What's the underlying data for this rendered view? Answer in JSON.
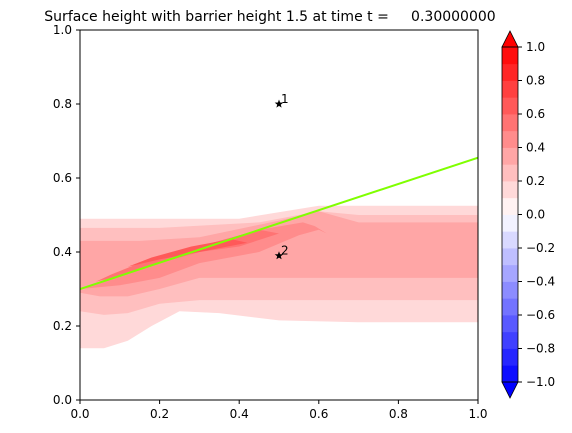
{
  "chart_data": {
    "type": "contourf",
    "title": "Surface height with barrier height 1.5 at time t =     0.30000000",
    "xlim": [
      0,
      1
    ],
    "ylim": [
      0,
      1
    ],
    "x_ticks": [
      "0.0",
      "0.2",
      "0.4",
      "0.6",
      "0.8",
      "1.0"
    ],
    "y_ticks": [
      "0.0",
      "0.2",
      "0.4",
      "0.6",
      "0.8",
      "1.0"
    ],
    "grid": false,
    "colorbar": {
      "range": [
        -1.0,
        1.0
      ],
      "levels": [
        -1.0,
        -0.9,
        -0.8,
        -0.7,
        -0.6,
        -0.5,
        -0.4,
        -0.3,
        -0.2,
        -0.1,
        0.0,
        0.1,
        0.2,
        0.3,
        0.4,
        0.5,
        0.6,
        0.7,
        0.8,
        0.9,
        1.0
      ],
      "tick_labels": [
        "1.0",
        "0.8",
        "0.6",
        "0.4",
        "0.2",
        "0.0",
        "−0.2",
        "−0.4",
        "−0.6",
        "−0.8",
        "−1.0"
      ],
      "extend": "both",
      "colormap": "bwr",
      "colors": {
        "low": "#0000ff",
        "mid": "#ffffff",
        "high": "#ff0000"
      }
    },
    "barrier_line": {
      "color": "#7fff00",
      "points": [
        [
          0.0,
          0.3
        ],
        [
          1.0,
          0.655
        ]
      ]
    },
    "markers": [
      {
        "label": "1",
        "x": 0.5,
        "y": 0.8
      },
      {
        "label": "2",
        "x": 0.5,
        "y": 0.39
      }
    ],
    "surface_bands": [
      {
        "level": 0.1,
        "polygon": [
          [
            0.0,
            0.14
          ],
          [
            0.06,
            0.14
          ],
          [
            0.12,
            0.16
          ],
          [
            0.18,
            0.2
          ],
          [
            0.25,
            0.24
          ],
          [
            0.35,
            0.235
          ],
          [
            0.5,
            0.215
          ],
          [
            0.7,
            0.21
          ],
          [
            1.0,
            0.21
          ],
          [
            1.0,
            0.525
          ],
          [
            0.8,
            0.525
          ],
          [
            0.6,
            0.525
          ],
          [
            0.4,
            0.49
          ],
          [
            0.2,
            0.49
          ],
          [
            0.0,
            0.49
          ]
        ]
      },
      {
        "level": 0.2,
        "polygon": [
          [
            0.0,
            0.24
          ],
          [
            0.06,
            0.23
          ],
          [
            0.12,
            0.235
          ],
          [
            0.2,
            0.26
          ],
          [
            0.3,
            0.27
          ],
          [
            0.45,
            0.27
          ],
          [
            0.6,
            0.27
          ],
          [
            1.0,
            0.27
          ],
          [
            1.0,
            0.5
          ],
          [
            0.7,
            0.5
          ],
          [
            0.6,
            0.51
          ],
          [
            0.45,
            0.48
          ],
          [
            0.2,
            0.465
          ],
          [
            0.0,
            0.465
          ]
        ]
      },
      {
        "level": 0.3,
        "polygon": [
          [
            0.0,
            0.29
          ],
          [
            0.05,
            0.28
          ],
          [
            0.12,
            0.28
          ],
          [
            0.2,
            0.3
          ],
          [
            0.3,
            0.33
          ],
          [
            0.5,
            0.33
          ],
          [
            1.0,
            0.33
          ],
          [
            1.0,
            0.48
          ],
          [
            0.7,
            0.48
          ],
          [
            0.6,
            0.51
          ],
          [
            0.5,
            0.485
          ],
          [
            0.3,
            0.44
          ],
          [
            0.15,
            0.43
          ],
          [
            0.0,
            0.43
          ]
        ]
      },
      {
        "level": 0.4,
        "polygon": [
          [
            0.0,
            0.3
          ],
          [
            0.1,
            0.31
          ],
          [
            0.2,
            0.33
          ],
          [
            0.3,
            0.37
          ],
          [
            0.45,
            0.4
          ],
          [
            0.55,
            0.445
          ],
          [
            0.6,
            0.46
          ],
          [
            0.62,
            0.45
          ],
          [
            0.59,
            0.47
          ],
          [
            0.56,
            0.48
          ],
          [
            0.45,
            0.46
          ],
          [
            0.3,
            0.415
          ],
          [
            0.15,
            0.37
          ],
          [
            0.05,
            0.32
          ]
        ]
      },
      {
        "level": 0.5,
        "polygon": [
          [
            0.04,
            0.32
          ],
          [
            0.12,
            0.34
          ],
          [
            0.2,
            0.37
          ],
          [
            0.3,
            0.4
          ],
          [
            0.4,
            0.415
          ],
          [
            0.5,
            0.45
          ],
          [
            0.45,
            0.46
          ],
          [
            0.35,
            0.43
          ],
          [
            0.25,
            0.4
          ],
          [
            0.15,
            0.37
          ],
          [
            0.08,
            0.34
          ]
        ]
      },
      {
        "level": 0.6,
        "polygon": [
          [
            0.12,
            0.36
          ],
          [
            0.2,
            0.38
          ],
          [
            0.3,
            0.4
          ],
          [
            0.42,
            0.425
          ],
          [
            0.38,
            0.435
          ],
          [
            0.28,
            0.415
          ],
          [
            0.18,
            0.385
          ]
        ]
      }
    ]
  }
}
